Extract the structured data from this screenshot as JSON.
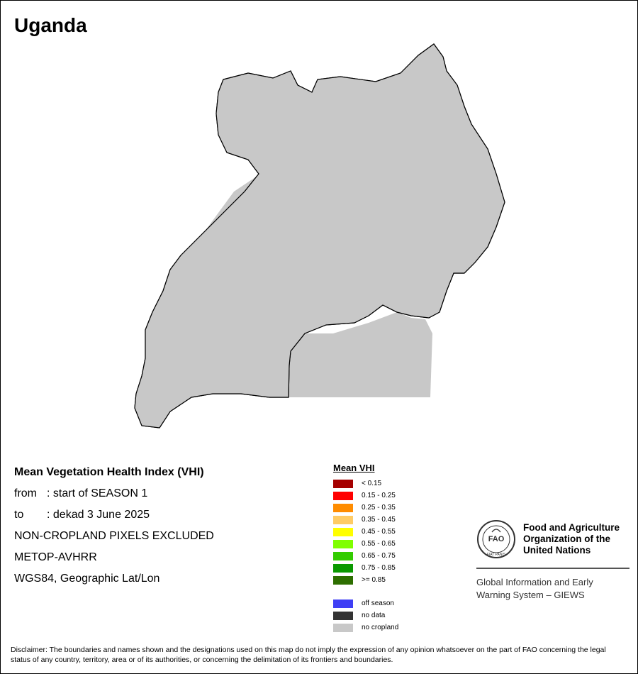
{
  "title": "Uganda",
  "info": {
    "index_title": "Mean Vegetation Health Index (VHI)",
    "from_label": "from",
    "from_value": ": start of SEASON 1",
    "to_label": "to",
    "to_value": ": dekad 3 June 2025",
    "mask_note": "NON-CROPLAND PIXELS EXCLUDED",
    "sensor": "METOP-AVHRR",
    "projection": "WGS84, Geographic Lat/Lon"
  },
  "legend": {
    "title": "Mean VHI",
    "classes": [
      {
        "label": "< 0.15",
        "color": "#a50000"
      },
      {
        "label": "0.15 - 0.25",
        "color": "#ff0000"
      },
      {
        "label": "0.25 - 0.35",
        "color": "#ff8c00"
      },
      {
        "label": "0.35 - 0.45",
        "color": "#ffcc66"
      },
      {
        "label": "0.45 - 0.55",
        "color": "#ffff00"
      },
      {
        "label": "0.55 - 0.65",
        "color": "#80ff00"
      },
      {
        "label": "0.65 - 0.75",
        "color": "#33cc00"
      },
      {
        "label": "0.75 - 0.85",
        "color": "#0a9900"
      },
      {
        "label": ">= 0.85",
        "color": "#2d6e00"
      }
    ],
    "other": [
      {
        "label": "off season",
        "color": "#3f3ff5"
      },
      {
        "label": "no data",
        "color": "#333333"
      },
      {
        "label": "no cropland",
        "color": "#c8c8c8"
      }
    ]
  },
  "organization": {
    "name_line1": "Food and Agriculture",
    "name_line2": "Organization of the",
    "name_line3": "United Nations",
    "logo_text": "FAO",
    "logo_motto": "FIAT PANIS",
    "system_line1": "Global Information and Early",
    "system_line2": "Warning System – GIEWS"
  },
  "disclaimer": "Disclaimer: The boundaries and names shown and the designations used on this map do not imply the expression of any opinion whatsoever on the part of FAO concerning the legal status of any country, territory, area or of its authorities, or concerning the delimitation of its frontiers and boundaries."
}
